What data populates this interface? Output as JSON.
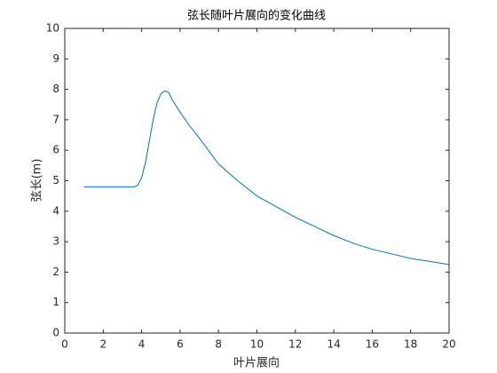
{
  "chart_data": {
    "type": "line",
    "title": "弦长随叶片展向的变化曲线",
    "xlabel": "叶片展向",
    "ylabel": "弦长(m)",
    "x": [
      1,
      2,
      3,
      3.6,
      3.8,
      4.0,
      4.2,
      4.4,
      4.6,
      4.8,
      5.0,
      5.2,
      5.4,
      5.6,
      6,
      6.5,
      7,
      8,
      9,
      10,
      11,
      12,
      13,
      14,
      15,
      16,
      17,
      18,
      19,
      20
    ],
    "series": [
      {
        "color": "#0072bd",
        "values": [
          4.8,
          4.8,
          4.8,
          4.8,
          4.85,
          5.1,
          5.6,
          6.3,
          7.0,
          7.55,
          7.85,
          7.95,
          7.9,
          7.65,
          7.25,
          6.8,
          6.4,
          5.55,
          5.0,
          4.5,
          4.15,
          3.8,
          3.5,
          3.2,
          2.95,
          2.75,
          2.6,
          2.45,
          2.35,
          2.25
        ]
      }
    ],
    "xlim": [
      0,
      20
    ],
    "xticks": [
      0,
      2,
      4,
      6,
      8,
      10,
      12,
      14,
      16,
      18,
      20
    ],
    "ylim": [
      0,
      10
    ],
    "yticks": [
      0,
      1,
      2,
      3,
      4,
      5,
      6,
      7,
      8,
      9,
      10
    ],
    "grid": false
  }
}
